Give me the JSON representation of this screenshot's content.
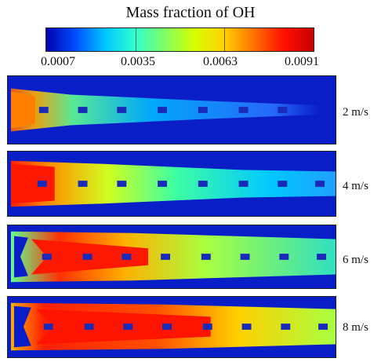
{
  "title": "Mass fraction of OH",
  "colorbar": {
    "tick_labels": [
      "0.0007",
      "0.0035",
      "0.0063",
      "0.0091"
    ],
    "colors": [
      "#0000b0",
      "#0050ff",
      "#00c8ff",
      "#30ffd0",
      "#80ff60",
      "#d8ff00",
      "#ffd000",
      "#ff7000",
      "#ff1000",
      "#c80000"
    ]
  },
  "panels": [
    {
      "label": "2 m/s"
    },
    {
      "label": "4 m/s"
    },
    {
      "label": "6 m/s"
    },
    {
      "label": "8 m/s"
    }
  ],
  "colors": {
    "background": "#0a1ec8",
    "hole": "#1a2ab8"
  }
}
